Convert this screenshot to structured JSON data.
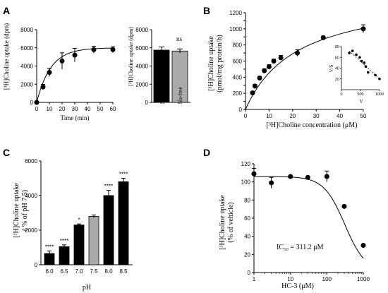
{
  "chart_data": [
    {
      "panel": "A",
      "type": "line",
      "xlabel": "Time (min)",
      "ylabel": "[³H]Choline uptake (dpm)",
      "xlim": [
        0,
        60
      ],
      "ylim": [
        0,
        8000
      ],
      "xticks": [
        0,
        10,
        20,
        30,
        40,
        50,
        60
      ],
      "yticks": [
        0,
        2000,
        4000,
        6000,
        8000
      ],
      "x": [
        0,
        5,
        10,
        20,
        30,
        45,
        60
      ],
      "y": [
        0,
        1700,
        3300,
        4550,
        5200,
        5800,
        5800
      ],
      "error": [
        0,
        280,
        450,
        900,
        750,
        380,
        320
      ],
      "grid": false
    },
    {
      "panel": "A",
      "type": "bar",
      "ylabel": "[³H]Choline uptake (dpm)",
      "ylim": [
        0,
        8000
      ],
      "yticks": [
        0,
        2000,
        4000,
        6000,
        8000
      ],
      "categories": [
        "Normal",
        "Na-free"
      ],
      "values": [
        5750,
        5650
      ],
      "error": [
        350,
        230
      ],
      "colors": [
        "#000000",
        "#aaaaaa"
      ],
      "annotation": "ns"
    },
    {
      "panel": "B",
      "type": "scatter",
      "xlabel": "[³H]Choline concentration (μM)",
      "ylabel": "[³H]Choline uptake (pmol/mg protein/h)",
      "xlim": [
        0,
        50
      ],
      "ylim": [
        0,
        1200
      ],
      "xticks": [
        0,
        10,
        20,
        30,
        40,
        50
      ],
      "yticks": [
        0,
        100,
        200,
        300,
        400,
        500,
        600,
        700,
        800,
        900,
        1000,
        1100,
        1200
      ],
      "ytick_labels": [
        "0",
        "",
        "200",
        "",
        "400",
        "",
        "600",
        "",
        "800",
        "",
        "1000",
        "",
        "1200"
      ],
      "x": [
        3,
        4,
        6,
        8,
        10,
        12,
        15,
        22,
        33,
        50
      ],
      "y": [
        205,
        290,
        390,
        480,
        530,
        600,
        640,
        700,
        890,
        1000
      ],
      "error": [
        20,
        20,
        20,
        25,
        25,
        25,
        30,
        40,
        20,
        50
      ],
      "inset": {
        "type": "scatter",
        "xlabel": "V",
        "ylabel": "V/S",
        "xlim": [
          0,
          1000
        ],
        "ylim": [
          0,
          80
        ],
        "xticks": [
          0,
          500,
          1000
        ],
        "yticks": [
          20,
          40,
          60,
          80
        ],
        "x": [
          205,
          290,
          390,
          480,
          530,
          600,
          640,
          700,
          890,
          1000
        ],
        "y": [
          68,
          72,
          65,
          60,
          53,
          50,
          43,
          32,
          27,
          20
        ]
      }
    },
    {
      "panel": "C",
      "type": "bar",
      "xlabel": "pH",
      "ylabel": "[³H]Choline uptake (% of pH 7.5)",
      "ylim": [
        0,
        6000
      ],
      "yticks": [
        0,
        2000,
        4000,
        6000
      ],
      "categories": [
        "6.0",
        "6.5",
        "7.0",
        "7.5",
        "8.0",
        "8.5"
      ],
      "values": [
        650,
        1050,
        2300,
        2800,
        4000,
        4800
      ],
      "error": [
        150,
        100,
        60,
        80,
        300,
        200
      ],
      "colors": [
        "#000000",
        "#000000",
        "#000000",
        "#aaaaaa",
        "#000000",
        "#000000"
      ],
      "significance": [
        "****",
        "****",
        "*",
        "",
        "****",
        "****"
      ]
    },
    {
      "panel": "D",
      "type": "scatter",
      "xlabel": "HC-3 (μM)",
      "ylabel": "[³H]Choline uptake (% of vehicle)",
      "xscale": "log",
      "xlim": [
        1,
        1000
      ],
      "ylim": [
        0,
        120
      ],
      "xticks": [
        1,
        10,
        100,
        1000
      ],
      "yticks": [
        0,
        20,
        40,
        60,
        80,
        100,
        120
      ],
      "x": [
        1,
        3,
        10,
        30,
        100,
        300,
        1000
      ],
      "y": [
        109,
        99,
        106,
        105,
        106,
        73,
        30
      ],
      "error": [
        6,
        6,
        0,
        0,
        6,
        0,
        0
      ],
      "annotation": "IC₅₀ = 311.2 μM"
    }
  ],
  "labels": {
    "panel_a": "A",
    "panel_b": "B",
    "panel_c": "C",
    "panel_d": "D",
    "a_ylabel": "[³H]Choline uptake (dpm)",
    "a_xlabel": "Time (min)",
    "a2_ylabel": "[³H]Choline uptake (dpm)",
    "a2_cat_normal": "Normal",
    "a2_cat_nafree": "Na-free",
    "a2_ns": "ns",
    "b_ylabel_1": "[³H]Choline uptake",
    "b_ylabel_2": "(pmol/mg protein/h)",
    "b_xlabel": "[³H]Choline concentration (μM)",
    "b_inset_y": "V/S",
    "b_inset_x": "V",
    "c_ylabel_1": "[³H]Choline uptake",
    "c_ylabel_2": "( % of pH 7.5)",
    "c_xlabel": "pH",
    "d_ylabel_1": "[³H]Choline uptake",
    "d_ylabel_2": "(% of vehicle)",
    "d_xlabel": "HC-3 (μM)",
    "d_ic50": "IC₅₀ = 311.2 μM"
  },
  "colors": {
    "ink": "#000000",
    "gray_bar": "#aaaaaa"
  }
}
